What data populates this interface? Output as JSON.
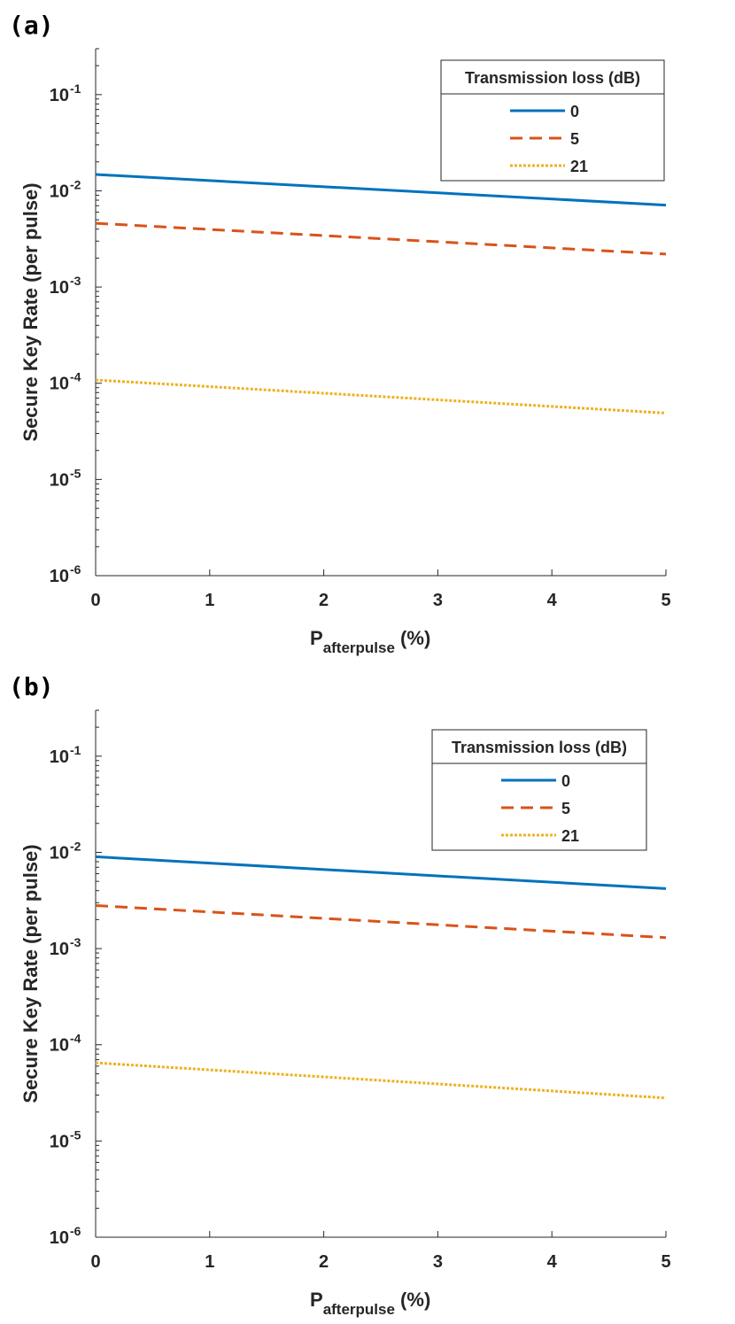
{
  "chart_data": [
    {
      "panel_label": "(a)",
      "type": "line",
      "xlabel": {
        "main": "P",
        "subscript": "afterpulse",
        "suffix": " (%)"
      },
      "ylabel": "Secure Key Rate (per pulse)",
      "xlim": [
        0,
        5
      ],
      "ylim": [
        1e-06,
        0.3
      ],
      "yscale": "log",
      "x_ticks": [
        "0",
        "1",
        "2",
        "3",
        "4",
        "5"
      ],
      "y_ticks": [
        {
          "value": 1e-06,
          "base": "10",
          "exp": "-6"
        },
        {
          "value": 1e-05,
          "base": "10",
          "exp": "-5"
        },
        {
          "value": 0.0001,
          "base": "10",
          "exp": "-4"
        },
        {
          "value": 0.001,
          "base": "10",
          "exp": "-3"
        },
        {
          "value": 0.01,
          "base": "10",
          "exp": "-2"
        },
        {
          "value": 0.1,
          "base": "10",
          "exp": "-1"
        }
      ],
      "grid": false,
      "legend": {
        "title": "Transmission loss (dB)",
        "placement": "top-right"
      },
      "series": [
        {
          "name": "0",
          "color": "#0072BD",
          "style": "solid",
          "x": [
            0,
            5
          ],
          "y": [
            0.0148,
            0.0071
          ]
        },
        {
          "name": "5",
          "color": "#D95319",
          "style": "dashed",
          "x": [
            0,
            5
          ],
          "y": [
            0.0046,
            0.0022
          ]
        },
        {
          "name": "21",
          "color": "#EDB120",
          "style": "dotted",
          "x": [
            0,
            5
          ],
          "y": [
            0.000108,
            4.9e-05
          ]
        }
      ]
    },
    {
      "panel_label": "(b)",
      "type": "line",
      "xlabel": {
        "main": "P",
        "subscript": "afterpulse",
        "suffix": " (%)"
      },
      "ylabel": "Secure Key Rate (per pulse)",
      "xlim": [
        0,
        5
      ],
      "ylim": [
        1e-06,
        0.3
      ],
      "yscale": "log",
      "x_ticks": [
        "0",
        "1",
        "2",
        "3",
        "4",
        "5"
      ],
      "y_ticks": [
        {
          "value": 1e-06,
          "base": "10",
          "exp": "-6"
        },
        {
          "value": 1e-05,
          "base": "10",
          "exp": "-5"
        },
        {
          "value": 0.0001,
          "base": "10",
          "exp": "-4"
        },
        {
          "value": 0.001,
          "base": "10",
          "exp": "-3"
        },
        {
          "value": 0.01,
          "base": "10",
          "exp": "-2"
        },
        {
          "value": 0.1,
          "base": "10",
          "exp": "-1"
        }
      ],
      "grid": false,
      "legend": {
        "title": "Transmission loss (dB)",
        "placement": "top-right"
      },
      "series": [
        {
          "name": "0",
          "color": "#0072BD",
          "style": "solid",
          "x": [
            0,
            5
          ],
          "y": [
            0.009,
            0.0042
          ]
        },
        {
          "name": "5",
          "color": "#D95319",
          "style": "dashed",
          "x": [
            0,
            5
          ],
          "y": [
            0.0028,
            0.0013
          ]
        },
        {
          "name": "21",
          "color": "#EDB120",
          "style": "dotted",
          "x": [
            0,
            5
          ],
          "y": [
            6.5e-05,
            2.8e-05
          ]
        }
      ]
    }
  ]
}
